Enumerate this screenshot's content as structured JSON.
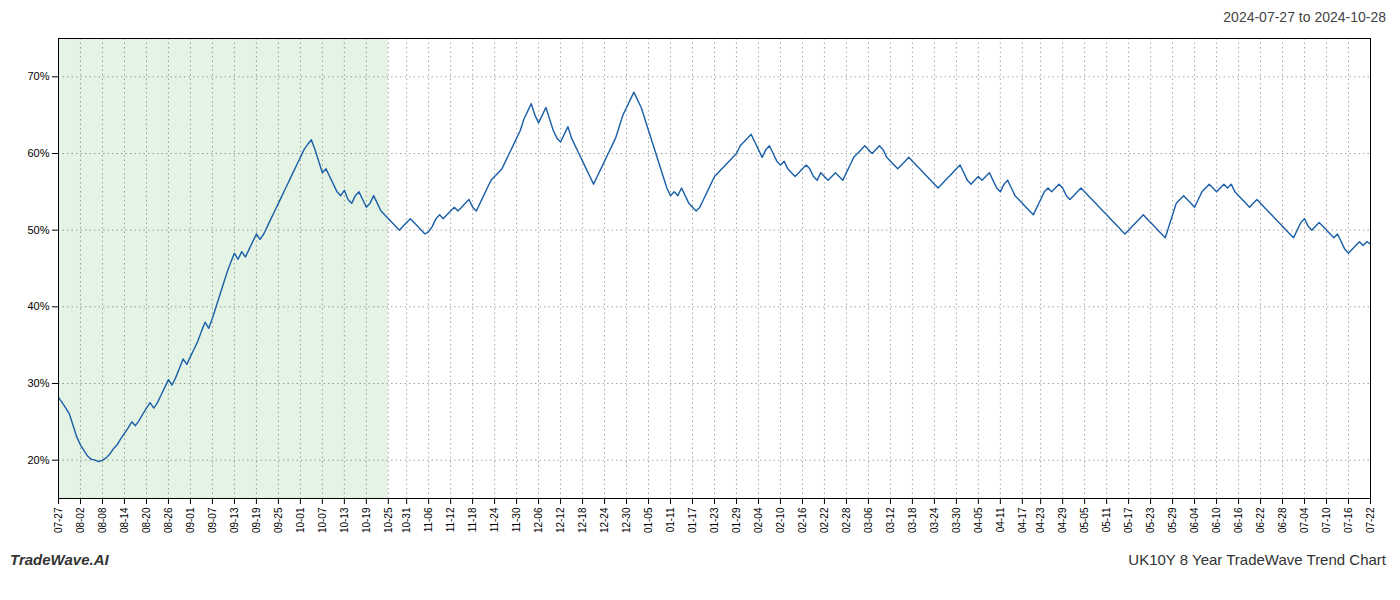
{
  "chart_data": {
    "type": "line",
    "title": "2024-07-27 to 2024-10-28",
    "annotations": [
      "TradeWave.AI",
      "UK10Y 8 Year TradeWave Trend Chart"
    ],
    "color": "#1a5fa8",
    "grid": true,
    "ylim": [
      15,
      75
    ],
    "yticks": [
      {
        "value": 20,
        "label": "20%"
      },
      {
        "value": 30,
        "label": "30%"
      },
      {
        "value": 40,
        "label": "40%"
      },
      {
        "value": 50,
        "label": "50%"
      },
      {
        "value": 60,
        "label": "60%"
      },
      {
        "value": 70,
        "label": "70%"
      }
    ],
    "shade": {
      "from": "07-27",
      "to": "10-25",
      "color": "#d6ecd6"
    },
    "categories": [
      "07-27",
      null,
      null,
      null,
      null,
      null,
      "08-02",
      null,
      null,
      null,
      null,
      null,
      "08-08",
      null,
      null,
      null,
      null,
      null,
      "08-14",
      null,
      null,
      null,
      null,
      null,
      "08-20",
      null,
      null,
      null,
      null,
      null,
      "08-26",
      null,
      null,
      null,
      null,
      null,
      "09-01",
      null,
      null,
      null,
      null,
      null,
      "09-07",
      null,
      null,
      null,
      null,
      null,
      "09-13",
      null,
      null,
      null,
      null,
      null,
      "09-19",
      null,
      null,
      null,
      null,
      null,
      "09-25",
      null,
      null,
      null,
      null,
      null,
      "10-01",
      null,
      null,
      null,
      null,
      null,
      "10-07",
      null,
      null,
      null,
      null,
      null,
      "10-13",
      null,
      null,
      null,
      null,
      null,
      "10-19",
      null,
      null,
      null,
      null,
      null,
      "10-25",
      null,
      null,
      null,
      null,
      "10-31",
      null,
      null,
      null,
      null,
      null,
      "11-06",
      null,
      null,
      null,
      null,
      null,
      "11-12",
      null,
      null,
      null,
      null,
      null,
      "11-18",
      null,
      null,
      null,
      null,
      null,
      "11-24",
      null,
      null,
      null,
      null,
      null,
      "11-30",
      null,
      null,
      null,
      null,
      null,
      "12-06",
      null,
      null,
      null,
      null,
      null,
      "12-12",
      null,
      null,
      null,
      null,
      null,
      "12-18",
      null,
      null,
      null,
      null,
      null,
      "12-24",
      null,
      null,
      null,
      null,
      null,
      "12-30",
      null,
      null,
      null,
      null,
      null,
      "01-05",
      null,
      null,
      null,
      null,
      null,
      "01-11",
      null,
      null,
      null,
      null,
      null,
      "01-17",
      null,
      null,
      null,
      null,
      null,
      "01-23",
      null,
      null,
      null,
      null,
      null,
      "01-29",
      null,
      null,
      null,
      null,
      null,
      "02-04",
      null,
      null,
      null,
      null,
      null,
      "02-10",
      null,
      null,
      null,
      null,
      null,
      "02-16",
      null,
      null,
      null,
      null,
      null,
      "02-22",
      null,
      null,
      null,
      null,
      null,
      "02-28",
      null,
      null,
      null,
      null,
      null,
      "03-06",
      null,
      null,
      null,
      null,
      null,
      "03-12",
      null,
      null,
      null,
      null,
      null,
      "03-18",
      null,
      null,
      null,
      null,
      null,
      "03-24",
      null,
      null,
      null,
      null,
      null,
      "03-30",
      null,
      null,
      null,
      null,
      null,
      "04-05",
      null,
      null,
      null,
      null,
      null,
      "04-11",
      null,
      null,
      null,
      null,
      null,
      "04-17",
      null,
      null,
      null,
      null,
      "04-23",
      null,
      null,
      null,
      null,
      null,
      "04-29",
      null,
      null,
      null,
      null,
      null,
      "05-05",
      null,
      null,
      null,
      null,
      null,
      "05-11",
      null,
      null,
      null,
      null,
      null,
      "05-17",
      null,
      null,
      null,
      null,
      null,
      "05-23",
      null,
      null,
      null,
      null,
      null,
      "05-29",
      null,
      null,
      null,
      null,
      null,
      "06-04",
      null,
      null,
      null,
      null,
      null,
      "06-10",
      null,
      null,
      null,
      null,
      null,
      "06-16",
      null,
      null,
      null,
      null,
      null,
      "06-22",
      null,
      null,
      null,
      null,
      null,
      "06-28",
      null,
      null,
      null,
      null,
      null,
      "07-04",
      null,
      null,
      null,
      null,
      null,
      "07-10",
      null,
      null,
      null,
      null,
      null,
      "07-16",
      null,
      null,
      null,
      null,
      null,
      "07-22"
    ],
    "values": [
      28.2,
      27.5,
      26.8,
      26.0,
      24.5,
      23.0,
      22.0,
      21.2,
      20.5,
      20.1,
      20.0,
      19.8,
      20.0,
      20.3,
      20.8,
      21.5,
      22.0,
      22.8,
      23.5,
      24.2,
      25.0,
      24.5,
      25.2,
      26.0,
      26.8,
      27.5,
      26.8,
      27.5,
      28.5,
      29.5,
      30.5,
      29.8,
      30.8,
      32.0,
      33.2,
      32.5,
      33.5,
      34.5,
      35.5,
      36.8,
      38.0,
      37.2,
      38.5,
      40.0,
      41.5,
      43.0,
      44.5,
      45.8,
      47.0,
      46.2,
      47.2,
      46.5,
      47.5,
      48.5,
      49.5,
      48.8,
      49.5,
      50.5,
      51.5,
      52.5,
      53.5,
      54.5,
      55.5,
      56.5,
      57.5,
      58.5,
      59.5,
      60.5,
      61.2,
      61.8,
      60.5,
      59.0,
      57.5,
      58.0,
      57.0,
      56.0,
      55.0,
      54.5,
      55.2,
      54.0,
      53.5,
      54.5,
      55.0,
      54.0,
      53.0,
      53.5,
      54.5,
      53.5,
      52.5,
      52.0,
      51.5,
      51.0,
      50.5,
      50.0,
      50.5,
      51.0,
      51.5,
      51.0,
      50.5,
      50.0,
      49.5,
      49.8,
      50.5,
      51.5,
      52.0,
      51.5,
      52.0,
      52.5,
      53.0,
      52.5,
      53.0,
      53.5,
      54.0,
      53.0,
      52.5,
      53.5,
      54.5,
      55.5,
      56.5,
      57.0,
      57.5,
      58.0,
      59.0,
      60.0,
      61.0,
      62.0,
      63.0,
      64.5,
      65.5,
      66.5,
      65.0,
      64.0,
      65.0,
      66.0,
      64.5,
      63.0,
      62.0,
      61.5,
      62.5,
      63.5,
      62.0,
      61.0,
      60.0,
      59.0,
      58.0,
      57.0,
      56.0,
      57.0,
      58.0,
      59.0,
      60.0,
      61.0,
      62.0,
      63.5,
      65.0,
      66.0,
      67.0,
      68.0,
      67.0,
      66.0,
      64.5,
      63.0,
      61.5,
      60.0,
      58.5,
      57.0,
      55.5,
      54.5,
      55.0,
      54.5,
      55.5,
      54.5,
      53.5,
      53.0,
      52.5,
      53.0,
      54.0,
      55.0,
      56.0,
      57.0,
      57.5,
      58.0,
      58.5,
      59.0,
      59.5,
      60.0,
      61.0,
      61.5,
      62.0,
      62.5,
      61.5,
      60.5,
      59.5,
      60.5,
      61.0,
      60.0,
      59.0,
      58.5,
      59.0,
      58.0,
      57.5,
      57.0,
      57.5,
      58.0,
      58.5,
      58.0,
      57.0,
      56.5,
      57.5,
      57.0,
      56.5,
      57.0,
      57.5,
      57.0,
      56.5,
      57.5,
      58.5,
      59.5,
      60.0,
      60.5,
      61.0,
      60.5,
      60.0,
      60.5,
      61.0,
      60.5,
      59.5,
      59.0,
      58.5,
      58.0,
      58.5,
      59.0,
      59.5,
      59.0,
      58.5,
      58.0,
      57.5,
      57.0,
      56.5,
      56.0,
      55.5,
      56.0,
      56.5,
      57.0,
      57.5,
      58.0,
      58.5,
      57.5,
      56.5,
      56.0,
      56.5,
      57.0,
      56.5,
      57.0,
      57.5,
      56.5,
      55.5,
      55.0,
      56.0,
      56.5,
      55.5,
      54.5,
      54.0,
      53.5,
      53.0,
      52.5,
      52.0,
      53.0,
      54.0,
      55.0,
      55.5,
      55.0,
      55.5,
      56.0,
      55.5,
      54.5,
      54.0,
      54.5,
      55.0,
      55.5,
      55.0,
      54.5,
      54.0,
      53.5,
      53.0,
      52.5,
      52.0,
      51.5,
      51.0,
      50.5,
      50.0,
      49.5,
      50.0,
      50.5,
      51.0,
      51.5,
      52.0,
      51.5,
      51.0,
      50.5,
      50.0,
      49.5,
      49.0,
      50.5,
      52.0,
      53.5,
      54.0,
      54.5,
      54.0,
      53.5,
      53.0,
      54.0,
      55.0,
      55.5,
      56.0,
      55.5,
      55.0,
      55.5,
      56.0,
      55.5,
      56.0,
      55.0,
      54.5,
      54.0,
      53.5,
      53.0,
      53.5,
      54.0,
      53.5,
      53.0,
      52.5,
      52.0,
      51.5,
      51.0,
      50.5,
      50.0,
      49.5,
      49.0,
      50.0,
      51.0,
      51.5,
      50.5,
      50.0,
      50.5,
      51.0,
      50.5,
      50.0,
      49.5,
      49.0,
      49.5,
      48.5,
      47.5,
      47.0,
      47.5,
      48.0,
      48.5,
      48.0,
      48.5,
      48.2
    ]
  }
}
